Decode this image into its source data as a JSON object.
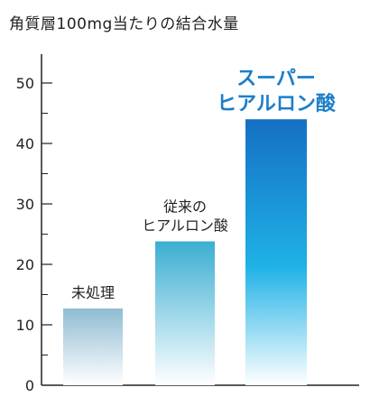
{
  "chart_data": {
    "type": "bar",
    "title": "角質層100mg当たりの結合水量",
    "ylim": [
      0,
      50
    ],
    "yticks": [
      0,
      10,
      20,
      30,
      40,
      50
    ],
    "grid": false,
    "categories": [
      {
        "label_lines": [
          "未処理"
        ],
        "value": 12.7,
        "highlight": false
      },
      {
        "label_lines": [
          "従来の",
          "ヒアルロン酸"
        ],
        "value": 23.8,
        "highlight": false
      },
      {
        "label_lines": [
          "スーパー",
          "ヒアルロン酸"
        ],
        "value": 44,
        "highlight": true
      }
    ],
    "colors": {
      "bar1_top": "#8fbcd2",
      "bar2_top": "#3aaed1",
      "bar3_top": "#1570c4",
      "bar3_mid": "#1eb1e6",
      "bar_bottom": "#ffffff",
      "highlight_text": "#1a7fc9",
      "axis": "#222222"
    }
  }
}
